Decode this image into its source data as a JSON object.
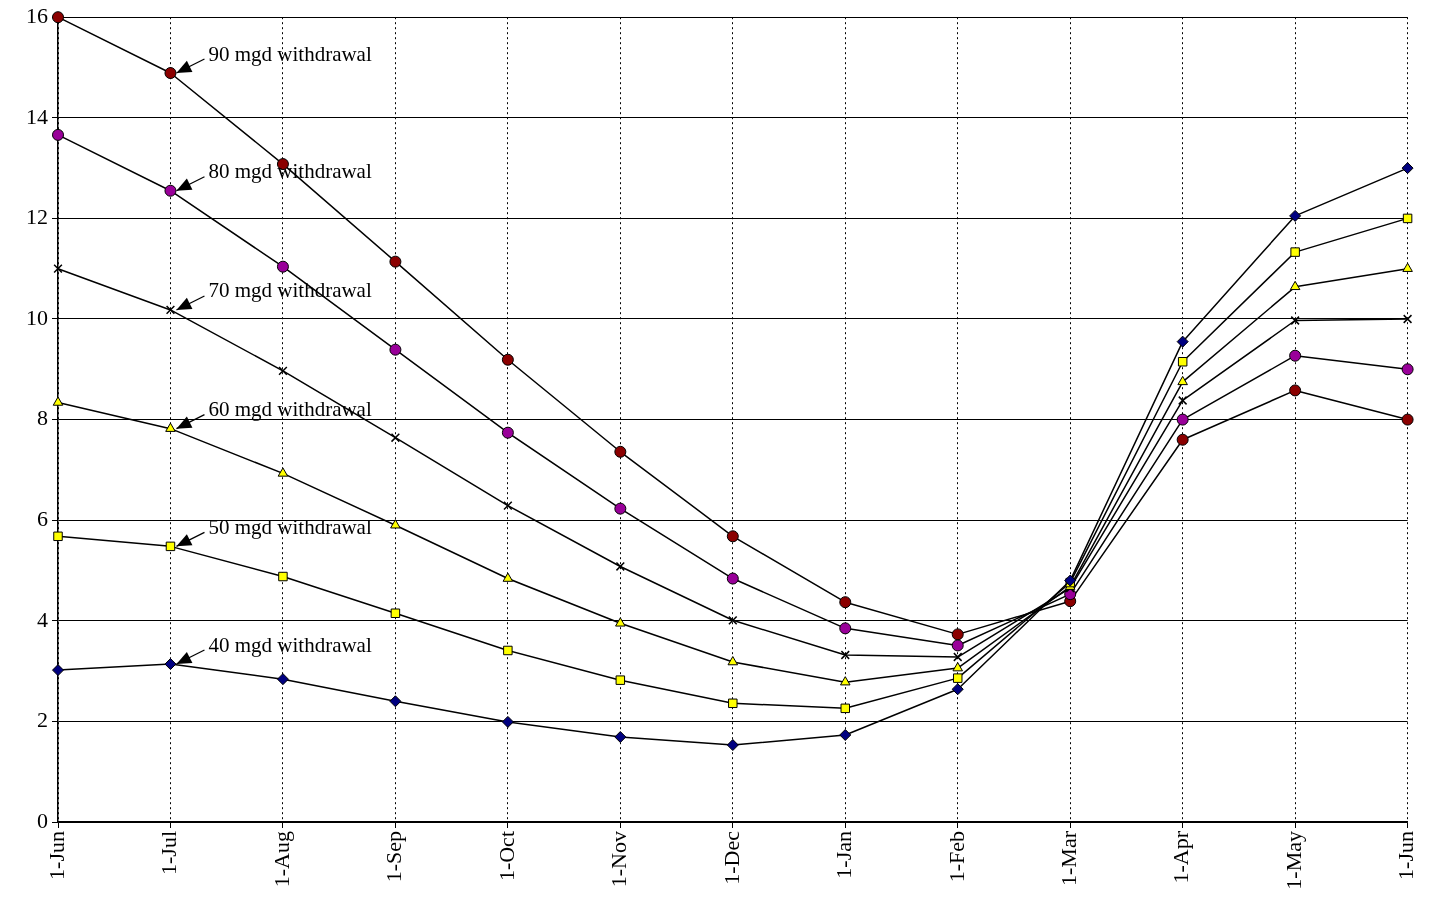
{
  "chart_data": {
    "type": "line",
    "categories": [
      "1-Jun",
      "1-Jul",
      "1-Aug",
      "1-Sep",
      "1-Oct",
      "1-Nov",
      "1-Dec",
      "1-Jan",
      "1-Feb",
      "1-Mar",
      "1-Apr",
      "1-May",
      "1-Jun"
    ],
    "series": [
      {
        "color": "#000080",
        "marker": "diamond",
        "values": [
          3.02,
          3.14,
          2.84,
          2.4,
          1.99,
          1.69,
          1.53,
          1.73,
          2.64,
          4.8,
          9.55,
          12.05,
          13.0
        ]
      },
      {
        "color": "#ffff00",
        "marker": "square",
        "values": [
          5.68,
          5.48,
          4.88,
          4.15,
          3.41,
          2.82,
          2.36,
          2.26,
          2.86,
          4.76,
          9.15,
          11.33,
          12.0
        ]
      },
      {
        "color": "#ffff00",
        "marker": "triangle",
        "values": [
          8.34,
          7.82,
          6.93,
          5.9,
          4.84,
          3.95,
          3.18,
          2.78,
          3.06,
          4.68,
          8.75,
          10.64,
          11.0
        ]
      },
      {
        "color": "#000000",
        "marker": "cross",
        "values": [
          11.0,
          10.18,
          8.97,
          7.64,
          6.29,
          5.08,
          4.01,
          3.32,
          3.28,
          4.65,
          8.38,
          9.97,
          10.0
        ]
      },
      {
        "color": "#990099",
        "marker": "circle",
        "values": [
          13.66,
          12.55,
          11.04,
          9.39,
          7.74,
          6.23,
          4.84,
          3.85,
          3.51,
          4.53,
          8.0,
          9.27,
          9.0
        ]
      },
      {
        "color": "#8b0000",
        "marker": "circle",
        "values": [
          16.0,
          14.89,
          13.08,
          11.14,
          9.19,
          7.36,
          5.68,
          4.37,
          3.73,
          4.39,
          7.6,
          8.58,
          8.0
        ]
      }
    ],
    "ylim": [
      0,
      16
    ],
    "yticks": [
      0,
      2,
      4,
      6,
      8,
      10,
      12,
      14,
      16
    ],
    "grid": true,
    "legend": false,
    "annotations": [
      {
        "text": "90 mgd withdrawal",
        "x": "1-Jul",
        "y": 14.89
      },
      {
        "text": "80 mgd withdrawal",
        "x": "1-Jul",
        "y": 12.55
      },
      {
        "text": "70 mgd withdrawal",
        "x": "1-Jul",
        "y": 10.18
      },
      {
        "text": "60 mgd withdrawal",
        "x": "1-Jul",
        "y": 7.82
      },
      {
        "text": "50 mgd withdrawal",
        "x": "1-Jul",
        "y": 5.48
      },
      {
        "text": "40 mgd withdrawal",
        "x": "1-Jul",
        "y": 3.14
      }
    ]
  }
}
